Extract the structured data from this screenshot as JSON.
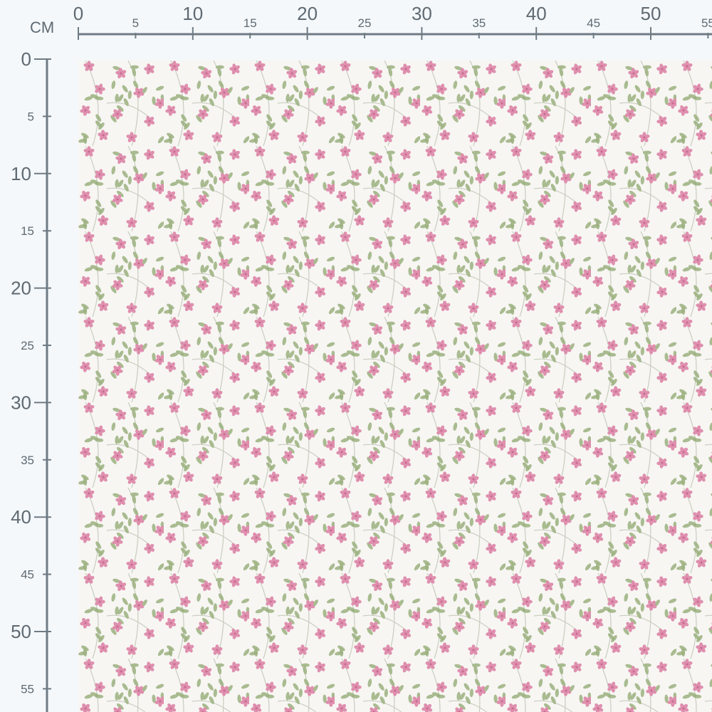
{
  "ruler": {
    "unit_label": "CM",
    "horizontal_ticks": [
      "0",
      "5",
      "10",
      "15",
      "20",
      "25",
      "30",
      "35",
      "40",
      "45",
      "50",
      "55"
    ],
    "vertical_ticks": [
      "0",
      "5",
      "10",
      "15",
      "20",
      "25",
      "30",
      "35",
      "40",
      "45",
      "50",
      "55"
    ]
  },
  "swatch": {
    "pattern": "pink-floral-with-green-leaves",
    "colors": {
      "background": "#f7f6f3",
      "flower": "#df8fae",
      "flower_center": "#c96a8e",
      "leaf": "#9bb07f",
      "stem": "#c9cdbf",
      "ruler": "#6f7b84",
      "page": "#f4f8fb"
    }
  }
}
